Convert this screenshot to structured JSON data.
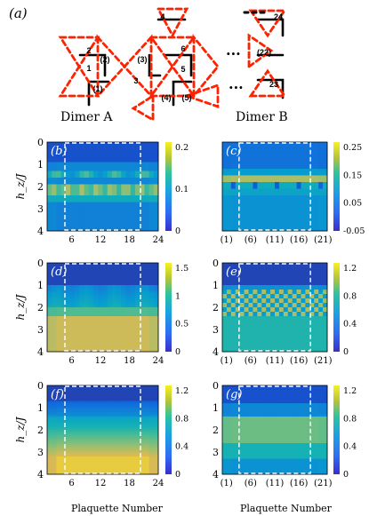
{
  "figure": {
    "panel_a_label": "(a)",
    "dimer_a_label": "Dimer A",
    "dimer_b_label": "Dimer B",
    "ylabel": "h_z/J",
    "xlabel": "Plaquette Number",
    "lattice_numbers": [
      "1",
      "2",
      "(1)",
      "(2)",
      "(3)",
      "3",
      "4",
      "5",
      "6",
      "(4)",
      "(5)",
      "22",
      "23",
      "24",
      "(22)"
    ],
    "ellipsis": "···"
  },
  "colors": {
    "dashed_bond": "#ff2200",
    "solid_bond": "#000000",
    "box": "#ffffff"
  },
  "chart_data": [
    {
      "panel": "(b)",
      "type": "heatmap",
      "xlabel": "",
      "ylabel": "h_z/J",
      "x_ticks": [
        "6",
        "12",
        "18",
        "24"
      ],
      "y_ticks": [
        "0",
        "1",
        "2",
        "3",
        "4"
      ],
      "colorbar_ticks": [
        "0.2",
        "0.1",
        "0"
      ],
      "ylim": [
        0,
        4
      ],
      "clim": [
        0,
        0.22
      ]
    },
    {
      "panel": "(c)",
      "type": "heatmap",
      "x_ticks": [
        "(1)",
        "(6)",
        "(11)",
        "(16)",
        "(21)"
      ],
      "y_ticks": [],
      "colorbar_ticks": [
        "0.25",
        "0.15",
        "0.05",
        "-0.05"
      ],
      "clim": [
        -0.07,
        0.3
      ]
    },
    {
      "panel": "(d)",
      "type": "heatmap",
      "ylabel": "h_z/J",
      "x_ticks": [
        "6",
        "12",
        "18",
        "24"
      ],
      "y_ticks": [
        "0",
        "1",
        "2",
        "3",
        "4"
      ],
      "colorbar_ticks": [
        "1.5",
        "1",
        "0.5",
        "0"
      ],
      "clim": [
        0,
        1.5
      ]
    },
    {
      "panel": "(e)",
      "type": "heatmap",
      "x_ticks": [
        "(1)",
        "(6)",
        "(11)",
        "(16)",
        "(21)"
      ],
      "y_ticks": [
        "0",
        "1",
        "2",
        "3",
        "4"
      ],
      "colorbar_ticks": [
        "1.2",
        "0.8",
        "0.4",
        "0"
      ],
      "clim": [
        0,
        1.3
      ]
    },
    {
      "panel": "(f)",
      "type": "heatmap",
      "ylabel": "h_z/J",
      "xlabel": "Plaquette Number",
      "x_ticks": [
        "6",
        "12",
        "18",
        "24"
      ],
      "y_ticks": [
        "0",
        "1",
        "2",
        "3",
        "4"
      ],
      "colorbar_ticks": [
        "1.2",
        "0.8",
        "0.4",
        "0"
      ],
      "clim": [
        0,
        1.3
      ]
    },
    {
      "panel": "(g)",
      "type": "heatmap",
      "xlabel": "Plaquette Number",
      "x_ticks": [
        "(1)",
        "(6)",
        "(11)",
        "(16)",
        "(21)"
      ],
      "y_ticks": [
        "0",
        "1",
        "2",
        "3",
        "4"
      ],
      "colorbar_ticks": [
        "1.2",
        "0.8",
        "0.4",
        "0"
      ],
      "clim": [
        0,
        1.3
      ]
    }
  ]
}
